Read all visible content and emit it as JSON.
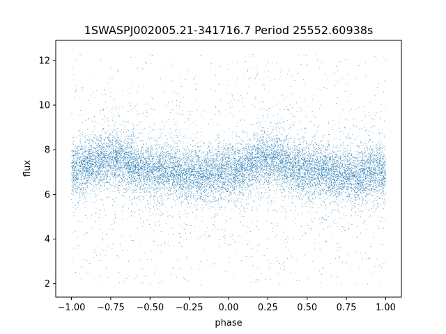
{
  "chart_data": {
    "type": "scatter",
    "title": "1SWASPJ002005.21-341716.7 Period 25552.60938s",
    "xlabel": "phase",
    "ylabel": "flux",
    "xlim": [
      -1.1,
      1.1
    ],
    "ylim": [
      1.4,
      12.9
    ],
    "x_ticks": [
      -1.0,
      -0.75,
      -0.5,
      -0.25,
      0.0,
      0.25,
      0.5,
      0.75,
      1.0
    ],
    "x_tick_labels": [
      "−1.00",
      "−0.75",
      "−0.50",
      "−0.25",
      "0.00",
      "0.25",
      "0.50",
      "0.75",
      "1.00"
    ],
    "y_ticks": [
      2,
      4,
      6,
      8,
      10,
      12
    ],
    "y_tick_labels": [
      "2",
      "4",
      "6",
      "8",
      "10",
      "12"
    ],
    "grid": false,
    "series": [
      {
        "color": "#1f77b4",
        "phase_range": [
          -1.0,
          1.0
        ],
        "flux_range": [
          1.9,
          12.3
        ],
        "trend_phase": [
          -1.0,
          -0.75,
          -0.5,
          -0.25,
          0.0,
          0.25,
          0.5,
          0.75,
          1.0
        ],
        "trend_flux": [
          7.1,
          7.6,
          7.1,
          6.9,
          7.0,
          7.6,
          7.1,
          6.9,
          7.0
        ],
        "core_spread": 0.6
      }
    ]
  }
}
